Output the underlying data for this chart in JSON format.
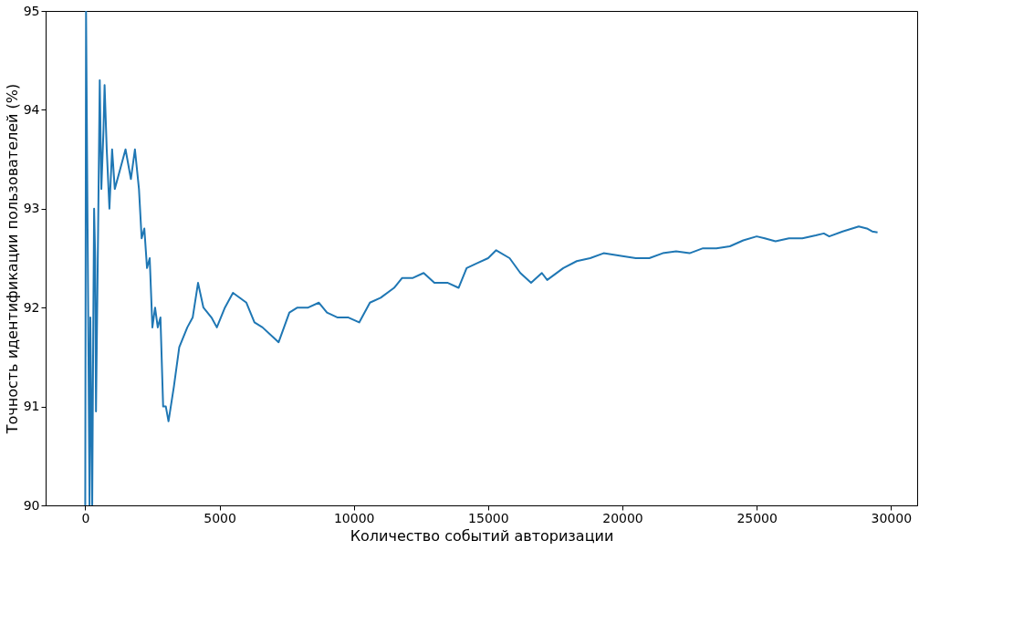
{
  "chart_data": {
    "type": "line",
    "xlabel": "Количество событий авторизации",
    "ylabel": "Точность идентификации пользователей (%)",
    "x": [
      0,
      30,
      160,
      190,
      260,
      300,
      330,
      370,
      400,
      480,
      540,
      600,
      680,
      720,
      800,
      900,
      1000,
      1100,
      1300,
      1500,
      1700,
      1850,
      2000,
      2100,
      2200,
      2300,
      2400,
      2500,
      2600,
      2700,
      2800,
      2900,
      3000,
      3100,
      3300,
      3500,
      3800,
      4000,
      4200,
      4400,
      4700,
      4900,
      5200,
      5500,
      6000,
      6300,
      6600,
      7000,
      7200,
      7600,
      7900,
      8300,
      8700,
      9000,
      9400,
      9800,
      10200,
      10600,
      11000,
      11500,
      11800,
      12200,
      12600,
      13000,
      13500,
      13900,
      14200,
      14600,
      15000,
      15300,
      15800,
      16200,
      16600,
      17000,
      17200,
      17800,
      18300,
      18800,
      19300,
      20000,
      20500,
      21000,
      21500,
      22000,
      22500,
      23000,
      23500,
      24000,
      24500,
      25000,
      25300,
      25700,
      26200,
      26700,
      27200,
      27500,
      27700,
      28200,
      28800,
      29100,
      29300,
      29500
    ],
    "series": [
      {
        "color": "#1f77b4",
        "values": [
          90,
          95,
          90,
          91.9,
          90,
          91.85,
          93.0,
          92.5,
          90.95,
          92.8,
          94.3,
          93.2,
          93.8,
          94.25,
          93.6,
          93.0,
          93.6,
          93.2,
          93.4,
          93.6,
          93.3,
          93.6,
          93.2,
          92.7,
          92.8,
          92.4,
          92.5,
          91.8,
          92.0,
          91.8,
          91.9,
          91.0,
          91.0,
          90.85,
          91.2,
          91.6,
          91.8,
          91.9,
          92.25,
          92.0,
          91.9,
          91.8,
          92.0,
          92.15,
          92.05,
          91.85,
          91.8,
          91.7,
          91.65,
          91.95,
          92.0,
          92.0,
          92.05,
          91.95,
          91.9,
          91.9,
          91.85,
          92.05,
          92.1,
          92.2,
          92.3,
          92.3,
          92.35,
          92.25,
          92.25,
          92.2,
          92.4,
          92.45,
          92.5,
          92.58,
          92.5,
          92.35,
          92.25,
          92.35,
          92.28,
          92.4,
          92.47,
          92.5,
          92.55,
          92.52,
          92.5,
          92.5,
          92.55,
          92.57,
          92.55,
          92.6,
          92.6,
          92.62,
          92.68,
          92.72,
          92.7,
          92.67,
          92.7,
          92.7,
          92.73,
          92.75,
          92.72,
          92.77,
          92.82,
          92.8,
          92.77,
          92.76
        ]
      }
    ],
    "xlim": [
      -1475,
      30975
    ],
    "ylim": [
      90,
      95
    ],
    "xticks": [
      0,
      5000,
      10000,
      15000,
      20000,
      25000,
      30000
    ],
    "yticks": [
      90,
      91,
      92,
      93,
      94,
      95
    ],
    "grid": false,
    "legend": false
  }
}
